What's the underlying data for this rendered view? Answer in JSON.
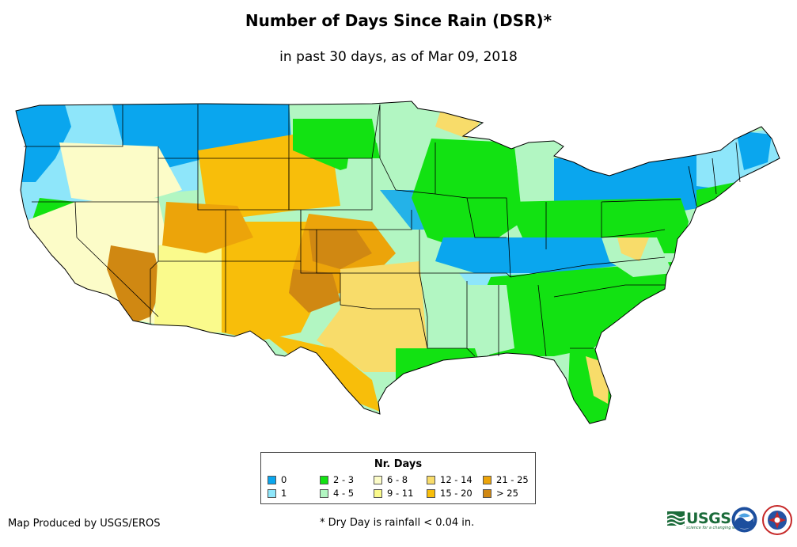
{
  "header": {
    "title": "Number of Days Since Rain (DSR)*",
    "subtitle": "in past 30 days, as of Mar 09, 2018"
  },
  "legend": {
    "title": "Nr. Days",
    "items": [
      {
        "label": "0",
        "color": "#0aa6ee"
      },
      {
        "label": "1",
        "color": "#8ee6fa"
      },
      {
        "label": "2 - 3",
        "color": "#12e212"
      },
      {
        "label": "4 - 5",
        "color": "#b2f6c2"
      },
      {
        "label": "6 - 8",
        "color": "#fcfcc8"
      },
      {
        "label": "9 - 11",
        "color": "#fafa8c"
      },
      {
        "label": "12 - 14",
        "color": "#f8dc6a"
      },
      {
        "label": "15 - 20",
        "color": "#f8be0a"
      },
      {
        "label": "21 - 25",
        "color": "#eca40a"
      },
      {
        "label": "> 25",
        "color": "#d08812"
      }
    ]
  },
  "footer": {
    "credit": "Map Produced by USGS/EROS",
    "footnote": "* Dry Day is rainfall < 0.04 in.",
    "usgs_logo_text": "USGS",
    "usgs_tagline": "science for a changing world"
  }
}
